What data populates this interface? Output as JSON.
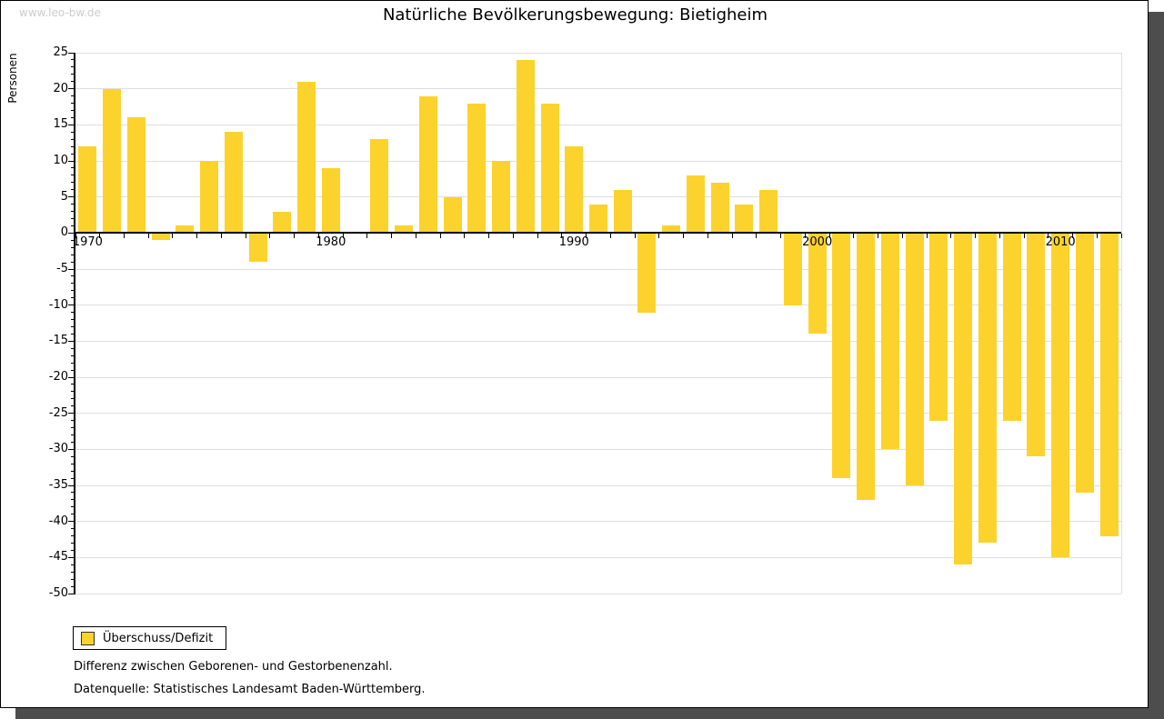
{
  "watermark": "www.leo-bw.de",
  "title": "Natürliche Bevölkerungsbewegung: Bietigheim",
  "y_axis_label": "Personen",
  "legend": {
    "label": "Überschuss/Defizit"
  },
  "footnotes": {
    "line1": "Differenz zwischen Geborenen- und Gestorbenenzahl.",
    "line2": "Datenquelle: Statistisches Landesamt Baden-Württemberg."
  },
  "colors": {
    "bar": "#FCD32C",
    "grid": "#DEDEDE",
    "axis": "#000000",
    "watermark": "#CCCCCC",
    "shadow": "#4D4D4D"
  },
  "chart_data": {
    "type": "bar",
    "title": "Natürliche Bevölkerungsbewegung: Bietigheim",
    "xlabel": "",
    "ylabel": "Personen",
    "series_name": "Überschuss/Defizit",
    "ylim": [
      -50,
      25
    ],
    "grid": true,
    "legend_position": "bottom-left",
    "x": [
      1970,
      1971,
      1972,
      1973,
      1974,
      1975,
      1976,
      1977,
      1978,
      1979,
      1980,
      1981,
      1982,
      1983,
      1984,
      1985,
      1986,
      1987,
      1988,
      1989,
      1990,
      1991,
      1992,
      1993,
      1994,
      1995,
      1996,
      1997,
      1998,
      1999,
      2000,
      2001,
      2002,
      2003,
      2004,
      2005,
      2006,
      2007,
      2008,
      2009,
      2010,
      2011,
      2012
    ],
    "values": [
      12,
      20,
      16,
      -1,
      1,
      10,
      14,
      -4,
      3,
      21,
      9,
      0,
      13,
      1,
      19,
      5,
      18,
      10,
      24,
      18,
      12,
      4,
      6,
      -11,
      1,
      8,
      7,
      4,
      6,
      -10,
      -14,
      -34,
      -37,
      -30,
      -35,
      -26,
      -46,
      -43,
      -26,
      -31,
      -45,
      -36,
      -42
    ],
    "y_ticks": [
      25,
      20,
      15,
      10,
      5,
      0,
      -5,
      -10,
      -15,
      -20,
      -25,
      -30,
      -35,
      -40,
      -45,
      -50
    ],
    "x_ticks": [
      1970,
      1980,
      1990,
      2000,
      2010
    ]
  }
}
